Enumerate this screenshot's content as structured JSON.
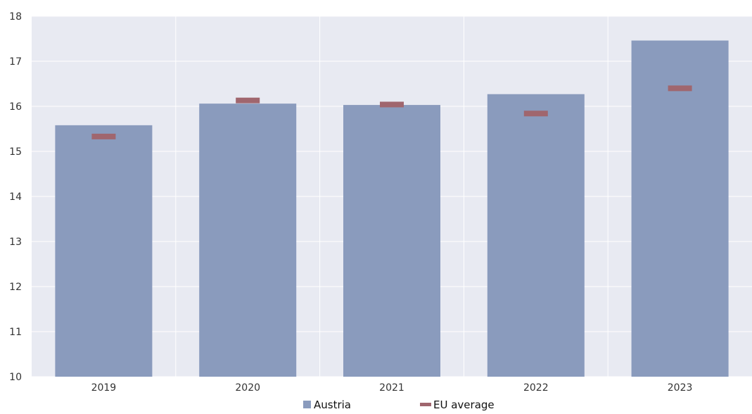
{
  "chart_data": {
    "type": "bar",
    "categories": [
      "2019",
      "2020",
      "2021",
      "2022",
      "2023"
    ],
    "series": [
      {
        "name": "Austria",
        "kind": "bar",
        "color": "#8a9bbd",
        "values": [
          15.58,
          16.06,
          16.03,
          16.27,
          17.46
        ]
      },
      {
        "name": "EU average",
        "kind": "marker",
        "color": "#a0666e",
        "values": [
          15.33,
          16.13,
          16.04,
          15.84,
          16.4
        ]
      }
    ],
    "y_ticks": [
      "10",
      "11",
      "12",
      "13",
      "14",
      "15",
      "16",
      "17",
      "18"
    ],
    "ylim": [
      10,
      18
    ],
    "grid": true,
    "legend_position": "bottom-center",
    "background_color": "#e8eaf2"
  }
}
